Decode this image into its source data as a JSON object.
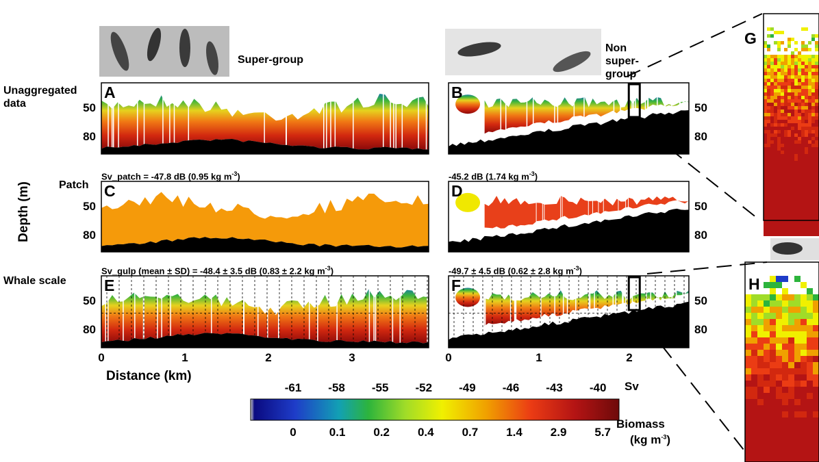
{
  "group_labels": [
    "Super-group",
    "Non super-group"
  ],
  "row_labels": [
    "Unaggregated data",
    "Patch",
    "Whale scale"
  ],
  "y_axis_label": "Depth (m)",
  "x_axis_label": "Distance (km)",
  "panel_letters": [
    "A",
    "B",
    "C",
    "D",
    "E",
    "F"
  ],
  "captions": [
    {
      "text": "Sv_patch = -47.8 dB (0.95 kg m",
      "sup": "-3",
      "end": ")"
    },
    {
      "text": "-45.2 dB (1.74 kg m",
      "sup": "-3",
      "end": ")"
    },
    {
      "text": "Sv_gulp (mean ± SD) = -48.4 ± 3.5 dB (0.83 ± 2.2 kg m",
      "sup": "-3",
      "end": ")"
    },
    {
      "text": "-49.7 ± 4.5 dB (0.62 ± 2.8 kg m",
      "sup": "-3",
      "end": ")"
    }
  ],
  "depth_ticks": [
    50,
    80
  ],
  "left_distance_ticks": [
    0,
    1,
    2,
    3
  ],
  "right_distance_ticks": [
    0,
    1,
    2
  ],
  "colorbar": {
    "sv_label": "Sv",
    "sv_ticks": [
      -61,
      -58,
      -55,
      -52,
      -49,
      -46,
      -43,
      -40
    ],
    "biomass_label": "Biomass",
    "biomass_unit": "(kg m",
    "biomass_sup": "-3",
    "biomass_end": ")",
    "biomass_ticks": [
      0,
      0.1,
      0.2,
      0.4,
      0.7,
      1.4,
      2.9,
      5.7
    ]
  },
  "zoom_letters": [
    "G",
    "H"
  ]
}
